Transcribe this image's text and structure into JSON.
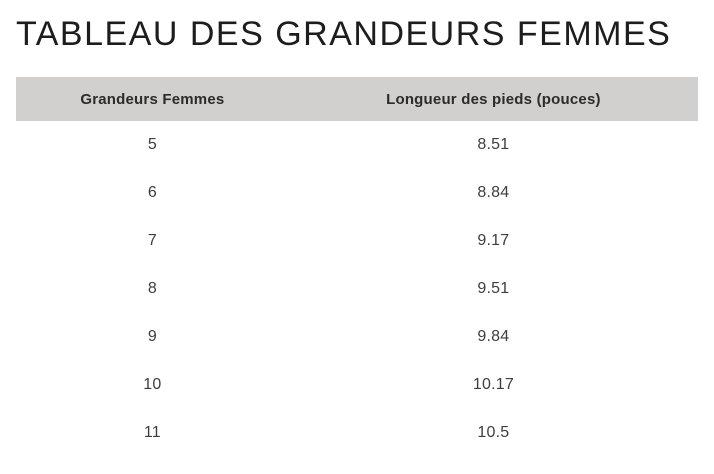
{
  "title": "TABLEAU DES GRANDEURS FEMMES",
  "table": {
    "headers": [
      "Grandeurs Femmes",
      "Longueur des pieds (pouces)"
    ],
    "rows": [
      [
        "5",
        "8.51"
      ],
      [
        "6",
        "8.84"
      ],
      [
        "7",
        "9.17"
      ],
      [
        "8",
        "9.51"
      ],
      [
        "9",
        "9.84"
      ],
      [
        "10",
        "10.17"
      ],
      [
        "11",
        "10.5"
      ]
    ]
  },
  "colors": {
    "header_bg": "#d1d0ce",
    "header_text": "#2b2b2b",
    "title_text": "#1d1d1d",
    "body_text": "#3d3d3d"
  }
}
